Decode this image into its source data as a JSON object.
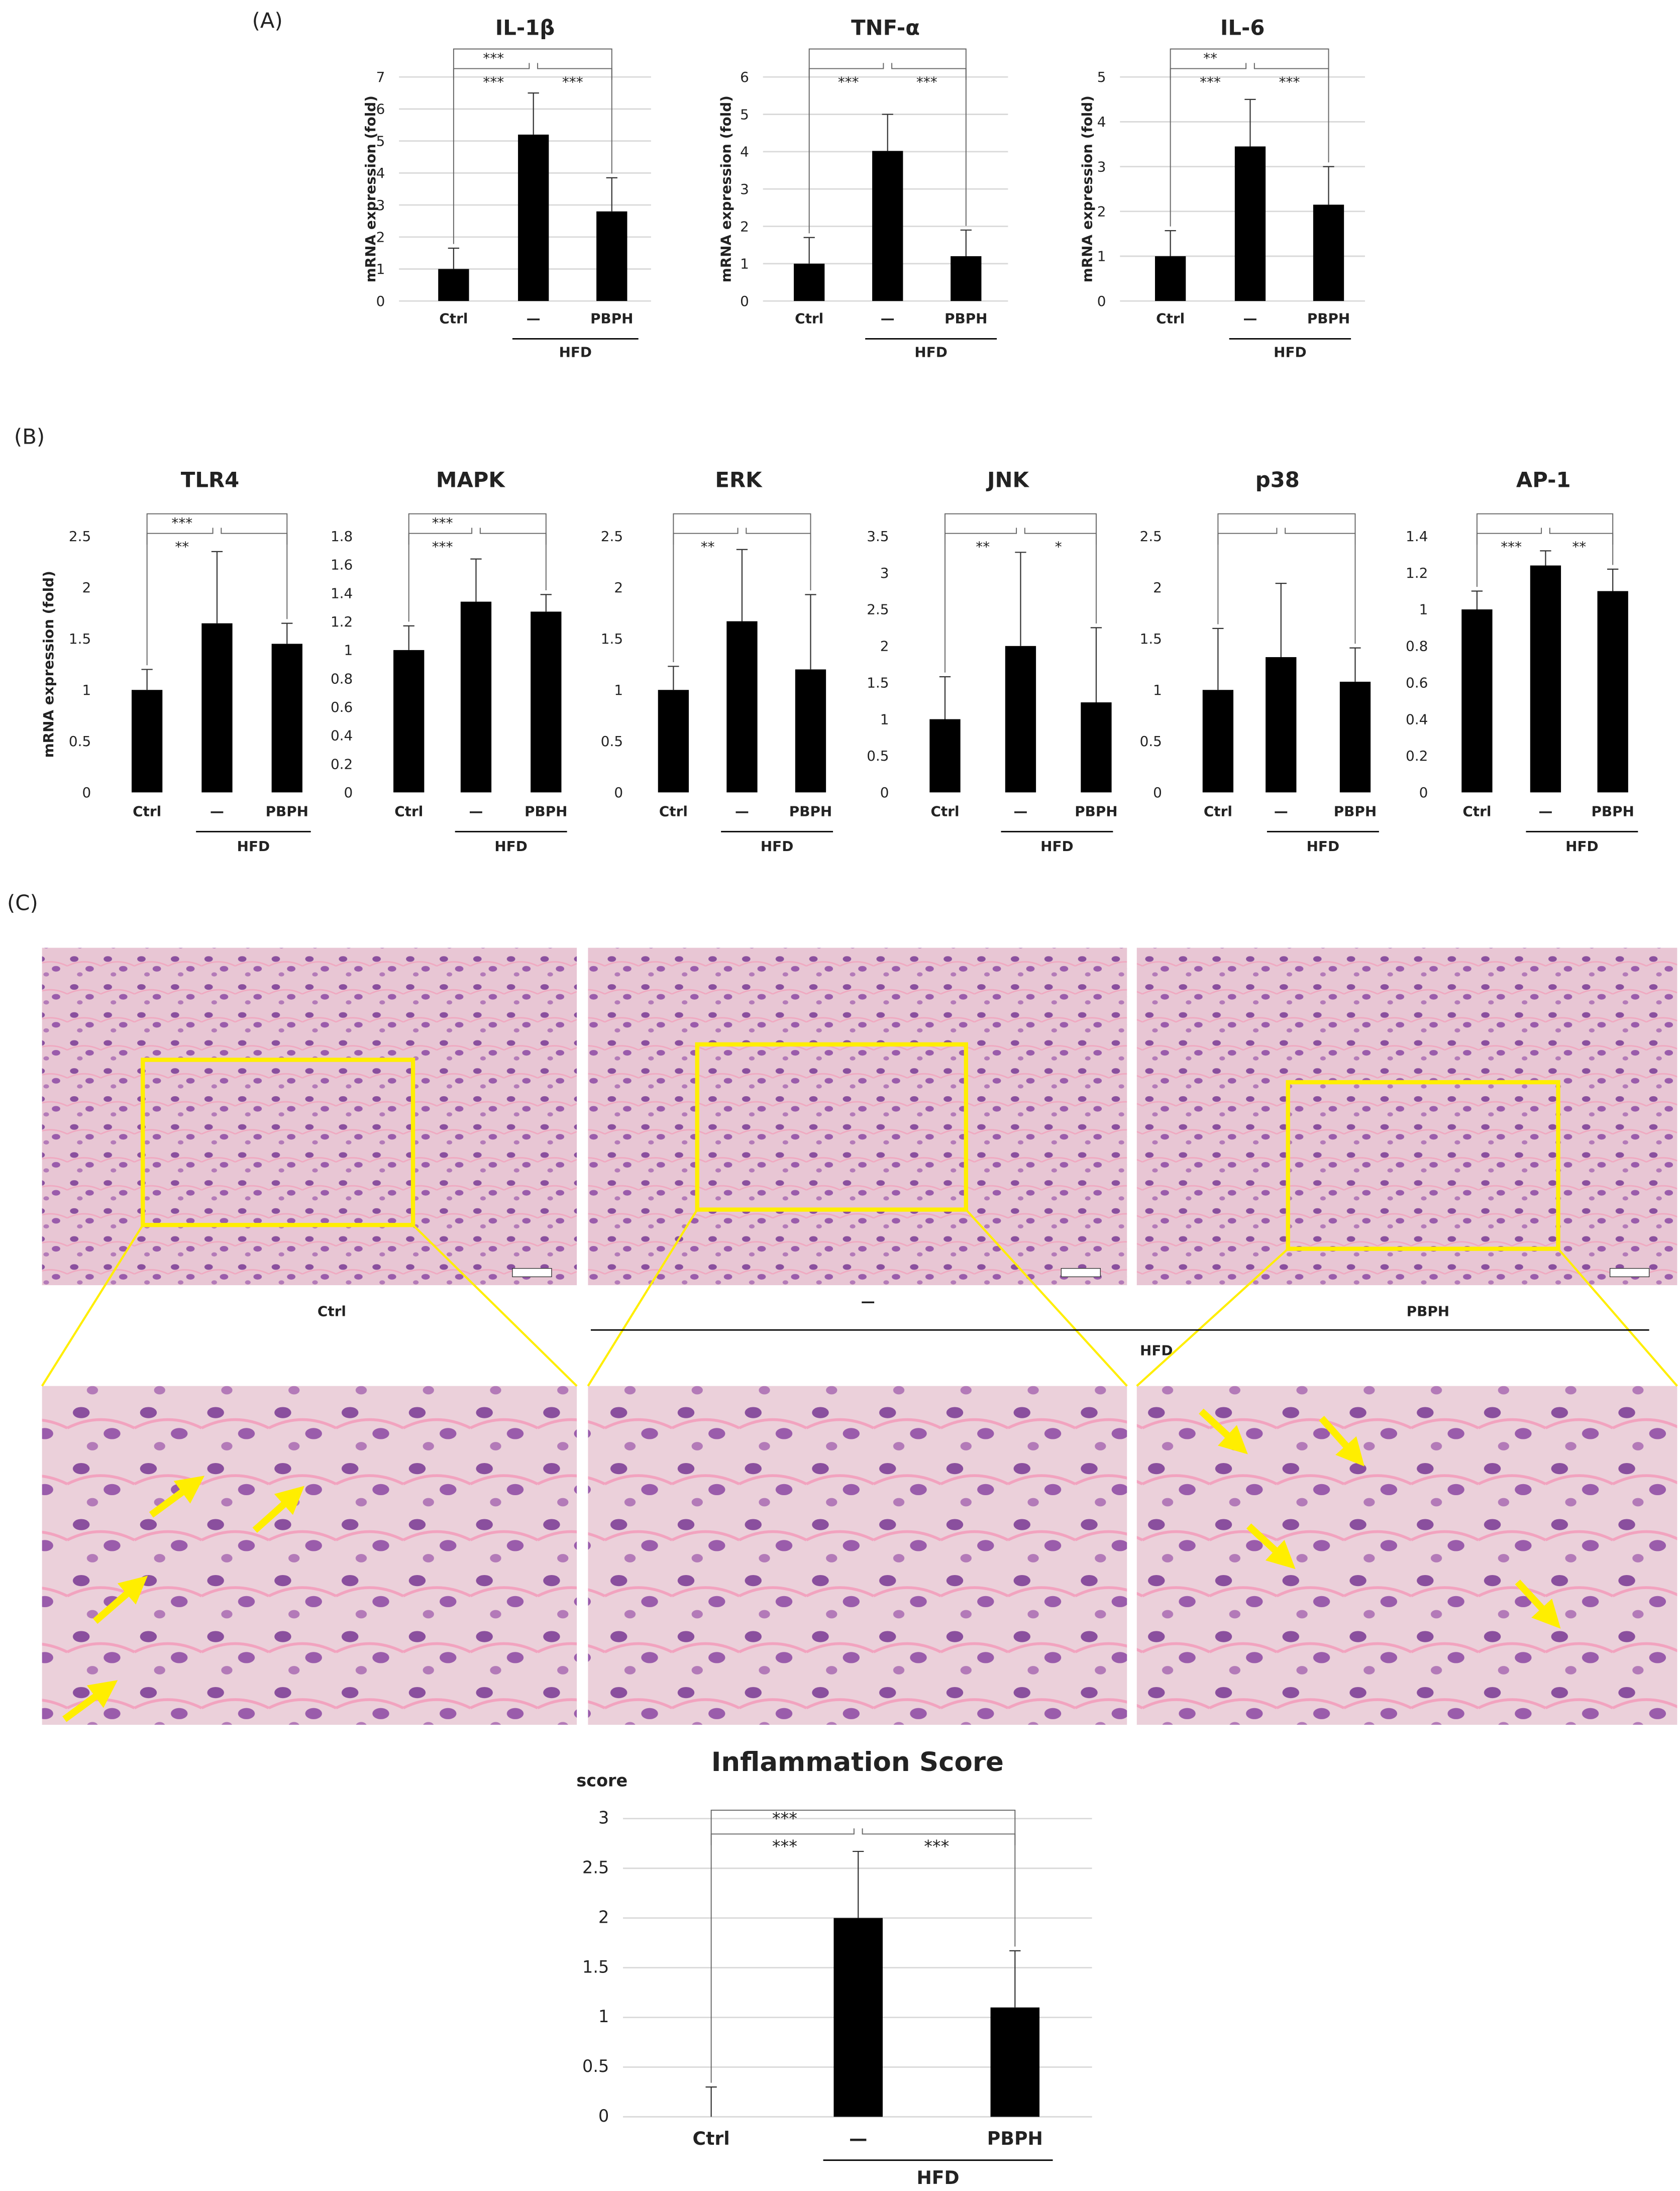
{
  "panel_labels": [
    "(A)",
    "(B)",
    "(C)"
  ],
  "histology": {
    "labels": [
      "Ctrl",
      "—",
      "PBPH"
    ],
    "group_label": "HFD"
  },
  "chart_data": [
    {
      "type": "bar",
      "title": "IL-1β",
      "y_label": "mRNA expression (fold)",
      "categories": [
        "Ctrl",
        "—",
        "PBPH"
      ],
      "group_label": "HFD",
      "values": [
        1.0,
        5.2,
        2.8
      ],
      "errors": [
        0.65,
        1.3,
        1.05
      ],
      "color": "#000000",
      "ylim": [
        0,
        7
      ],
      "yticks": [
        0,
        1,
        2,
        3,
        4,
        5,
        6,
        7
      ],
      "grid": true,
      "significance": {
        "outer": "***",
        "left": "***",
        "right": "***"
      }
    },
    {
      "type": "bar",
      "title": "TNF-α",
      "y_label": "mRNA expression (fold)",
      "categories": [
        "Ctrl",
        "—",
        "PBPH"
      ],
      "group_label": "HFD",
      "values": [
        1.0,
        4.02,
        1.2
      ],
      "errors": [
        0.7,
        0.98,
        0.7
      ],
      "color": "#000000",
      "ylim": [
        0,
        6
      ],
      "yticks": [
        0,
        1,
        2,
        3,
        4,
        5,
        6
      ],
      "grid": true,
      "significance": {
        "outer": null,
        "left": "***",
        "right": "***"
      }
    },
    {
      "type": "bar",
      "title": "IL-6",
      "y_label": "mRNA expression (fold)",
      "categories": [
        "Ctrl",
        "—",
        "PBPH"
      ],
      "group_label": "HFD",
      "values": [
        1.0,
        3.45,
        2.15
      ],
      "errors": [
        0.57,
        1.05,
        0.85
      ],
      "color": "#000000",
      "ylim": [
        0,
        5
      ],
      "yticks": [
        0,
        1,
        2,
        3,
        4,
        5
      ],
      "grid": true,
      "significance": {
        "outer": "**",
        "left": "***",
        "right": "***"
      }
    },
    {
      "type": "bar",
      "title": "TLR4",
      "y_label": "mRNA expression (fold)",
      "categories": [
        "Ctrl",
        "—",
        "PBPH"
      ],
      "group_label": "HFD",
      "values": [
        1.0,
        1.65,
        1.45
      ],
      "errors": [
        0.2,
        0.7,
        0.2
      ],
      "color": "#000000",
      "ylim": [
        0,
        2.5
      ],
      "yticks": [
        0,
        0.5,
        1,
        1.5,
        2,
        2.5
      ],
      "grid": false,
      "significance": {
        "outer": "***",
        "left": "**",
        "right": null
      }
    },
    {
      "type": "bar",
      "title": "MAPK",
      "categories": [
        "Ctrl",
        "—",
        "PBPH"
      ],
      "group_label": "HFD",
      "values": [
        1.0,
        1.34,
        1.27
      ],
      "errors": [
        0.17,
        0.3,
        0.12
      ],
      "color": "#000000",
      "ylim": [
        0,
        1.8
      ],
      "yticks": [
        0,
        0.2,
        0.4,
        0.6,
        0.8,
        1,
        1.2,
        1.4,
        1.6,
        1.8
      ],
      "grid": false,
      "significance": {
        "outer": "***",
        "left": "***",
        "right": null
      }
    },
    {
      "type": "bar",
      "title": "ERK",
      "categories": [
        "Ctrl",
        "—",
        "PBPH"
      ],
      "group_label": "HFD",
      "values": [
        1.0,
        1.67,
        1.2
      ],
      "errors": [
        0.23,
        0.7,
        0.73
      ],
      "color": "#000000",
      "ylim": [
        0,
        2.5
      ],
      "yticks": [
        0,
        0.5,
        1,
        1.5,
        2,
        2.5
      ],
      "grid": false,
      "significance": {
        "outer": null,
        "left": "**",
        "right": null
      }
    },
    {
      "type": "bar",
      "title": "JNK",
      "categories": [
        "Ctrl",
        "—",
        "PBPH"
      ],
      "group_label": "HFD",
      "values": [
        1.0,
        2.0,
        1.23
      ],
      "errors": [
        0.58,
        1.28,
        1.02
      ],
      "color": "#000000",
      "ylim": [
        0,
        3.5
      ],
      "yticks": [
        0,
        0.5,
        1,
        1.5,
        2,
        2.5,
        3,
        3.5
      ],
      "grid": false,
      "significance": {
        "outer": null,
        "left": "**",
        "right": "*"
      }
    },
    {
      "type": "bar",
      "title": "p38",
      "categories": [
        "Ctrl",
        "—",
        "PBPH"
      ],
      "group_label": "HFD",
      "values": [
        1.0,
        1.32,
        1.08
      ],
      "errors": [
        0.6,
        0.72,
        0.33
      ],
      "color": "#000000",
      "ylim": [
        0,
        2.5
      ],
      "yticks": [
        0,
        0.5,
        1,
        1.5,
        2,
        2.5
      ],
      "grid": false,
      "significance": {
        "outer": null,
        "left": null,
        "right": null
      }
    },
    {
      "type": "bar",
      "title": "AP-1",
      "categories": [
        "Ctrl",
        "—",
        "PBPH"
      ],
      "group_label": "HFD",
      "values": [
        1.0,
        1.24,
        1.1
      ],
      "errors": [
        0.1,
        0.08,
        0.12
      ],
      "color": "#000000",
      "ylim": [
        0,
        1.4
      ],
      "yticks": [
        0,
        0.2,
        0.4,
        0.6,
        0.8,
        1,
        1.2,
        1.4
      ],
      "grid": false,
      "significance": {
        "outer": null,
        "left": "***",
        "right": "**"
      }
    },
    {
      "type": "bar",
      "title": "Inflammation Score",
      "y_label": "score",
      "categories": [
        "Ctrl",
        "—",
        "PBPH"
      ],
      "group_label": "HFD",
      "values": [
        0,
        2.0,
        1.1
      ],
      "errors": [
        0.3,
        0.67,
        0.57
      ],
      "color": "#000000",
      "ylim": [
        0,
        3
      ],
      "yticks": [
        0,
        0.5,
        1,
        1.5,
        2,
        2.5,
        3
      ],
      "grid": true,
      "significance": {
        "outer": "***",
        "left": "***",
        "right": "***"
      }
    }
  ]
}
